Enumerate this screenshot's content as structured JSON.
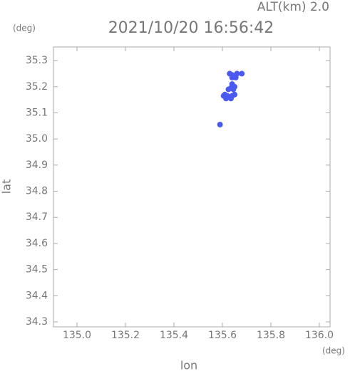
{
  "chart_data": {
    "type": "scatter",
    "title": "2021/10/20 16:56:42",
    "annotation": "ALT(km) 2.0",
    "y_unit": "(deg)",
    "x_unit": "(deg)",
    "xlabel": "lon",
    "ylabel": "lat",
    "color": "#4a5af0",
    "x": [
      135.63,
      135.64,
      135.65,
      135.66,
      135.68,
      135.64,
      135.655,
      135.64,
      135.65,
      135.635,
      135.625,
      135.645,
      135.61,
      135.62,
      135.63,
      135.64,
      135.615,
      135.605,
      135.635,
      135.65,
      135.59
    ],
    "values": [
      35.25,
      35.245,
      35.24,
      35.25,
      35.25,
      35.235,
      35.235,
      35.21,
      35.2,
      35.195,
      35.19,
      35.19,
      35.17,
      35.165,
      35.16,
      35.165,
      35.155,
      35.165,
      35.155,
      35.17,
      35.055
    ],
    "xlim": [
      134.903,
      136.044
    ],
    "ylim": [
      34.281,
      35.352
    ],
    "xticks": [
      {
        "value": 135,
        "label": "135.0"
      },
      135.2,
      135.4,
      135.6,
      135.8,
      {
        "value": 136,
        "label": "136.0"
      }
    ],
    "yticks": [
      35.3,
      35.2,
      35.1,
      {
        "value": 35,
        "label": "35.0"
      },
      34.9,
      34.8,
      34.7,
      34.6,
      34.5,
      34.4,
      34.3
    ]
  }
}
